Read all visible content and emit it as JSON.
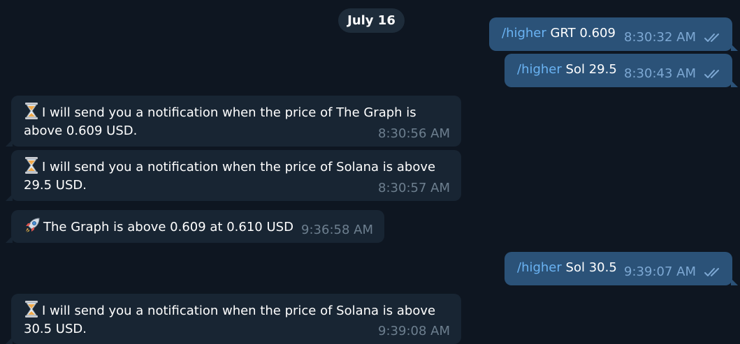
{
  "date_label": "July 16",
  "colors": {
    "background": "#0e1621",
    "outgoing_bubble": "#2b5278",
    "incoming_bubble": "#182533",
    "command_link": "#6ab3f3"
  },
  "messages": [
    {
      "direction": "out",
      "command": "/higher",
      "args": "GRT 0.609",
      "time": "8:30:32 AM",
      "status_icon": "double-check-icon"
    },
    {
      "direction": "out",
      "command": "/higher",
      "args": "Sol 29.5",
      "time": "8:30:43 AM",
      "status_icon": "double-check-icon"
    },
    {
      "direction": "in",
      "icon": "hourglass-icon",
      "line1": "I will send you a notification when the price of The Graph is",
      "line2": "above 0.609 USD.",
      "time": "8:30:56 AM"
    },
    {
      "direction": "in",
      "icon": "hourglass-icon",
      "line1": "I will send you a notification when the price of Solana is above",
      "line2": "29.5 USD.",
      "time": "8:30:57 AM"
    },
    {
      "direction": "in",
      "icon": "rocket-icon",
      "line1": "The Graph is above 0.609 at 0.610 USD",
      "time": "9:36:58 AM"
    },
    {
      "direction": "out",
      "command": "/higher",
      "args": "Sol 30.5",
      "time": "9:39:07 AM",
      "status_icon": "double-check-icon"
    },
    {
      "direction": "in",
      "icon": "hourglass-icon",
      "line1": "I will send you a notification when the price of Solana is above",
      "line2": "30.5 USD.",
      "time": "9:39:08 AM"
    }
  ]
}
